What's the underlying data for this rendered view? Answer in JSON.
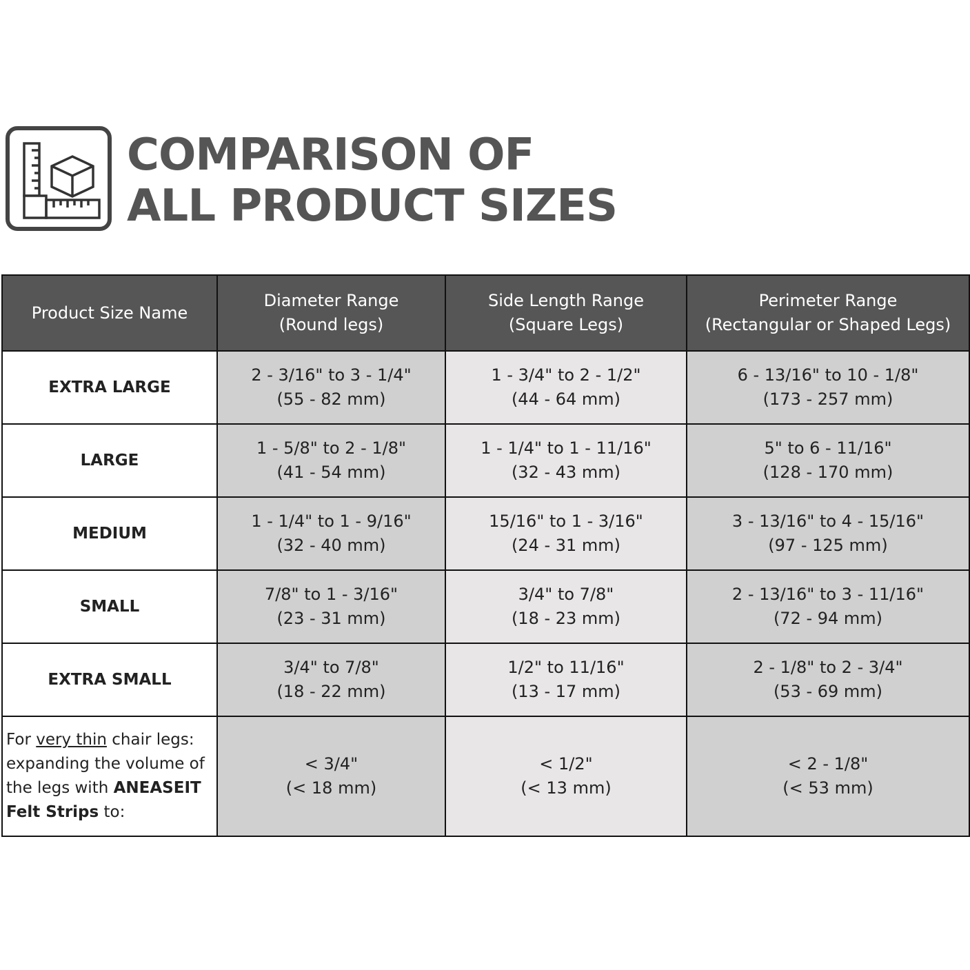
{
  "title": {
    "line1": "COMPARISON OF",
    "line2": "ALL PRODUCT SIZES",
    "icon": "ruler-cube-icon"
  },
  "colors": {
    "header_bg": "#565656",
    "col_dark": "#d0d0d0",
    "col_light": "#e8e6e6",
    "title": "#555555"
  },
  "table": {
    "headers": [
      {
        "l1": "Product Size Name",
        "l2": ""
      },
      {
        "l1": "Diameter Range",
        "l2": "(Round legs)"
      },
      {
        "l1": "Side Length Range",
        "l2": "(Square Legs)"
      },
      {
        "l1": "Perimeter Range",
        "l2": "(Rectangular or Shaped Legs)"
      }
    ],
    "rows": [
      {
        "name": "EXTRA LARGE",
        "cells": [
          {
            "in": "2 - 3/16\" to 3 - 1/4\"",
            "mm": "(55 - 82 mm)"
          },
          {
            "in": "1 - 3/4\" to 2 - 1/2\"",
            "mm": "(44 - 64 mm)"
          },
          {
            "in": "6 - 13/16\" to 10 - 1/8\"",
            "mm": "(173 - 257 mm)"
          }
        ]
      },
      {
        "name": "LARGE",
        "cells": [
          {
            "in": "1 - 5/8\" to 2 - 1/8\"",
            "mm": "(41 - 54 mm)"
          },
          {
            "in": "1 - 1/4\" to 1 - 11/16\"",
            "mm": "(32 - 43 mm)"
          },
          {
            "in": "5\" to 6 - 11/16\"",
            "mm": "(128 - 170 mm)"
          }
        ]
      },
      {
        "name": "MEDIUM",
        "cells": [
          {
            "in": "1 - 1/4\" to 1 - 9/16\"",
            "mm": "(32 - 40 mm)"
          },
          {
            "in": "15/16\" to 1 - 3/16\"",
            "mm": "(24 - 31 mm)"
          },
          {
            "in": "3 - 13/16\" to 4 - 15/16\"",
            "mm": "(97 - 125 mm)"
          }
        ]
      },
      {
        "name": "SMALL",
        "cells": [
          {
            "in": "7/8\" to  1 - 3/16\"",
            "mm": "(23 - 31 mm)"
          },
          {
            "in": "3/4\" to 7/8\"",
            "mm": "(18 - 23 mm)"
          },
          {
            "in": "2 - 13/16\" to 3 - 11/16\"",
            "mm": "(72 - 94 mm)"
          }
        ]
      },
      {
        "name": "EXTRA SMALL",
        "cells": [
          {
            "in": "3/4\" to 7/8\"",
            "mm": "(18 - 22 mm)"
          },
          {
            "in": "1/2\" to 11/16\"",
            "mm": "(13 - 17 mm)"
          },
          {
            "in": "2 - 1/8\" to 2 - 3/4\"",
            "mm": "(53 - 69 mm)"
          }
        ]
      }
    ],
    "note": {
      "p1": "For ",
      "u": "very thin",
      "p2": " chair legs: expanding the volume of the legs with ",
      "b": "ANEASEIT Felt Strips",
      "p3": " to:"
    },
    "note_cells": [
      {
        "in": "< 3/4\"",
        "mm": "(< 18 mm)"
      },
      {
        "in": "< 1/2\"",
        "mm": "(< 13 mm)"
      },
      {
        "in": "< 2 - 1/8\"",
        "mm": "(< 53 mm)"
      }
    ]
  }
}
